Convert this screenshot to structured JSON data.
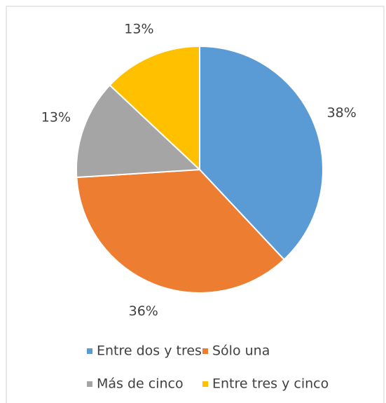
{
  "chart_data": {
    "type": "pie",
    "categories": [
      "Entre dos y tres",
      "Sólo una",
      "Más de cinco",
      "Entre tres y cinco"
    ],
    "values": [
      38,
      36,
      13,
      13
    ],
    "value_labels": [
      "38%",
      "36%",
      "13%",
      "13%"
    ],
    "colors": [
      "#5b9bd5",
      "#ed7d31",
      "#a5a5a5",
      "#ffc000"
    ]
  }
}
